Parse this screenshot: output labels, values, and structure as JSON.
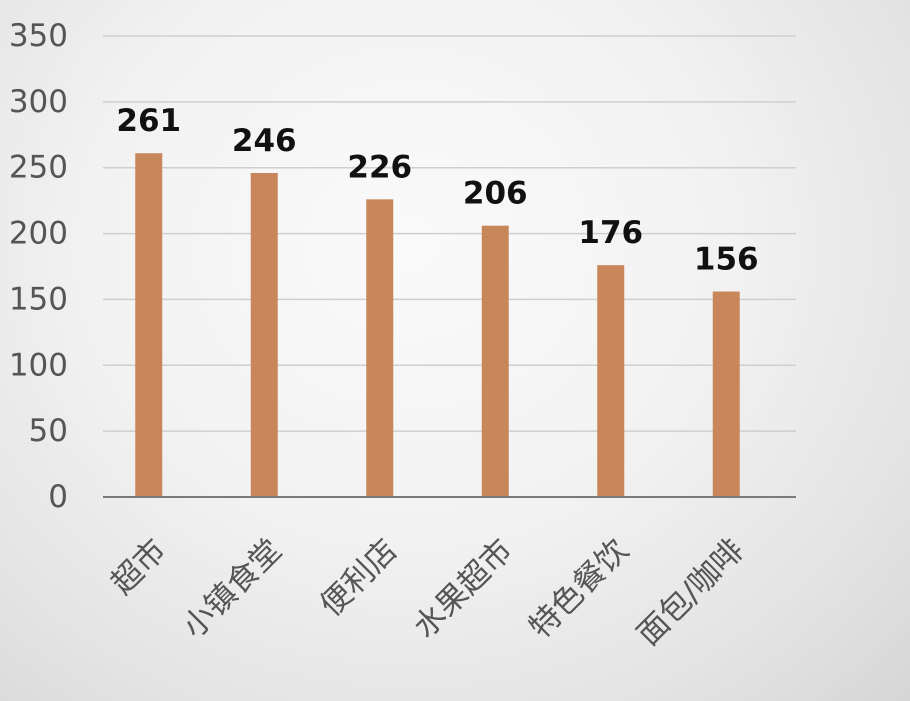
{
  "chart_data": {
    "type": "bar",
    "categories": [
      "超市",
      "小镇食堂",
      "便利店",
      "水果超市",
      "特色餐饮",
      "面包/咖啡"
    ],
    "values": [
      261,
      246,
      226,
      206,
      176,
      156
    ],
    "title": "",
    "xlabel": "",
    "ylabel": "",
    "ylim": [
      0,
      350
    ],
    "yticks": [
      0,
      50,
      100,
      150,
      200,
      250,
      300,
      350
    ],
    "grid": true,
    "legend": "none",
    "data_labels": true,
    "bar_color": "#C8875A"
  }
}
